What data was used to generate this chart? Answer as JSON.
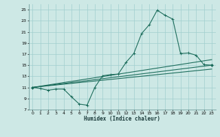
{
  "xlabel": "Humidex (Indice chaleur)",
  "bg_color": "#cde8e5",
  "grid_color": "#9ecece",
  "line_color": "#1a6b5a",
  "xlim": [
    -0.5,
    23.5
  ],
  "ylim": [
    7,
    26
  ],
  "yticks": [
    7,
    9,
    11,
    13,
    15,
    17,
    19,
    21,
    23,
    25
  ],
  "xticks": [
    0,
    1,
    2,
    3,
    4,
    5,
    6,
    7,
    8,
    9,
    10,
    11,
    12,
    13,
    14,
    15,
    16,
    17,
    18,
    19,
    20,
    21,
    22,
    23
  ],
  "series1": {
    "x": [
      0,
      1,
      2,
      3,
      4,
      5,
      6,
      7,
      8,
      9,
      10,
      11,
      12,
      13,
      14,
      15,
      16,
      17,
      18,
      19,
      20,
      21,
      22,
      23
    ],
    "y": [
      11,
      10.8,
      10.5,
      10.7,
      10.7,
      9.3,
      8.0,
      7.8,
      11.0,
      13.1,
      13.3,
      13.4,
      15.5,
      17.1,
      20.7,
      22.3,
      24.9,
      24.0,
      23.3,
      17.1,
      17.2,
      16.8,
      15.1,
      15.0
    ]
  },
  "series2_x": [
    0,
    23
  ],
  "series2_y": [
    11.0,
    15.0
  ],
  "series3_x": [
    0,
    23
  ],
  "series3_y": [
    11.0,
    14.3
  ],
  "series4_x": [
    0,
    23
  ],
  "series4_y": [
    11.0,
    16.0
  ]
}
